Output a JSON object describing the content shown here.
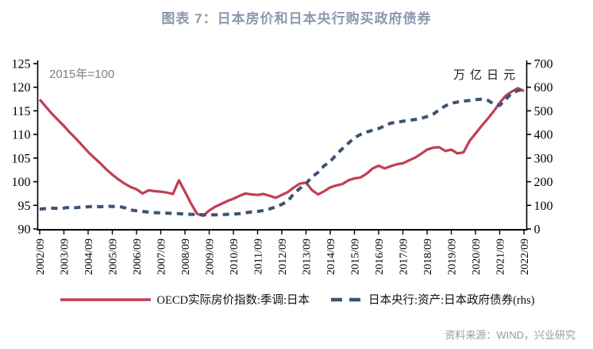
{
  "title": "图表 7：日本房价和日本央行购买政府债券",
  "source": "资料来源：WIND，兴业研究",
  "annotations": {
    "left_unit_note": "2015年=100",
    "right_unit_note": "万亿日元"
  },
  "colors": {
    "title": "#8C98B0",
    "housing_line": "#C23E55",
    "boj_line": "#3C5473",
    "axis": "#000000",
    "note_gray": "#7f7f7f",
    "source_gray": "#9b9b9b"
  },
  "chart_data": {
    "type": "line",
    "title": "图表 7：日本房价和日本央行购买政府债券",
    "x_frequency": "quarterly",
    "x_start": "2002/09",
    "x_end": "2022/09",
    "x_tick_labels": [
      "2002/09",
      "2003/09",
      "2004/09",
      "2005/09",
      "2006/09",
      "2007/09",
      "2008/09",
      "2009/09",
      "2010/09",
      "2011/09",
      "2012/09",
      "2013/09",
      "2014/09",
      "2015/09",
      "2016/09",
      "2017/09",
      "2018/09",
      "2019/09",
      "2020/09",
      "2021/09",
      "2022/09"
    ],
    "left_axis": {
      "note": "2015年=100",
      "min": 90,
      "max": 125,
      "step": 5,
      "ticks": [
        90,
        95,
        100,
        105,
        110,
        115,
        120,
        125
      ]
    },
    "right_axis": {
      "note": "万亿日元",
      "min": 0,
      "max": 700,
      "step": 100,
      "ticks": [
        0,
        100,
        200,
        300,
        400,
        500,
        600,
        700
      ]
    },
    "grid": false,
    "legend_position": "bottom",
    "series": [
      {
        "name": "OECD实际房价指数:季调:日本",
        "axis": "left",
        "style": "solid",
        "color": "#C23E55",
        "values": [
          117.4,
          115.9,
          114.4,
          113.1,
          111.8,
          110.4,
          109.1,
          107.7,
          106.3,
          105.1,
          103.9,
          102.6,
          101.5,
          100.5,
          99.6,
          98.9,
          98.4,
          97.5,
          98.2,
          98.0,
          97.9,
          97.7,
          97.4,
          100.3,
          97.9,
          95.4,
          93.2,
          92.8,
          93.9,
          94.7,
          95.3,
          95.9,
          96.4,
          97.0,
          97.5,
          97.3,
          97.2,
          97.4,
          97.0,
          96.6,
          97.2,
          97.8,
          98.8,
          99.6,
          99.8,
          98.2,
          97.3,
          98.0,
          98.8,
          99.2,
          99.5,
          100.3,
          100.7,
          100.9,
          101.7,
          102.8,
          103.4,
          102.8,
          103.3,
          103.7,
          103.9,
          104.5,
          105.1,
          105.9,
          106.8,
          107.2,
          107.3,
          106.5,
          106.8,
          106.0,
          106.2,
          108.6,
          110.2,
          111.8,
          113.3,
          114.9,
          116.7,
          118.2,
          119.1,
          119.8,
          119.2
        ]
      },
      {
        "name": "日本央行:资产:日本政府债券(rhs)",
        "axis": "right",
        "style": "dashed",
        "color": "#3C5473",
        "values": [
          84,
          86,
          88,
          87,
          89,
          92,
          90,
          93,
          94,
          96,
          94,
          97,
          95,
          96,
          90,
          80,
          77,
          74,
          71,
          69,
          68,
          67,
          66,
          65,
          63,
          62,
          61,
          60,
          60,
          60,
          61,
          62,
          63,
          65,
          69,
          72,
          74,
          78,
          85,
          93,
          104,
          118,
          150,
          172,
          193,
          220,
          240,
          268,
          285,
          315,
          340,
          363,
          386,
          400,
          410,
          418,
          425,
          436,
          448,
          452,
          456,
          460,
          463,
          468,
          476,
          486,
          504,
          521,
          532,
          537,
          541,
          544,
          548,
          549,
          545,
          529,
          523,
          549,
          575,
          586,
          590
        ]
      }
    ]
  },
  "legend": {
    "housing": "OECD实际房价指数:季调:日本",
    "boj": "日本央行:资产:日本政府债券(rhs)"
  }
}
